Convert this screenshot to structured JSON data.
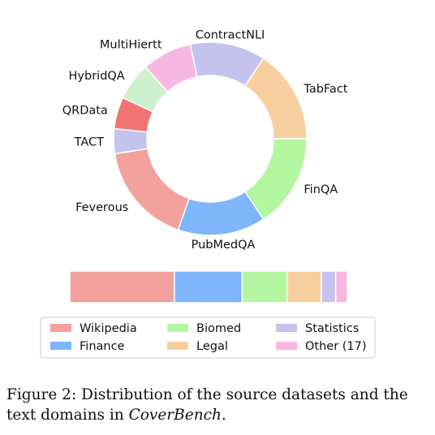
{
  "chart_data": [
    {
      "type": "pie",
      "style": "donut",
      "slices": [
        {
          "label": "TACT",
          "value": 4.2,
          "color": "#c4c3ee"
        },
        {
          "label": "QRData",
          "value": 5.3,
          "color": "#f07572"
        },
        {
          "label": "HybridQA",
          "value": 6.3,
          "color": "#cdf0cd"
        },
        {
          "label": "MultiHiertt",
          "value": 8.4,
          "color": "#f6b8e2"
        },
        {
          "label": "ContractNLI",
          "value": 12.6,
          "color": "#c4c3ee"
        },
        {
          "label": "TabFact",
          "value": 15.7,
          "color": "#f7cf9f"
        },
        {
          "label": "FinQA",
          "value": 15.7,
          "color": "#b2f6a0"
        },
        {
          "label": "PubMedQA",
          "value": 14.7,
          "color": "#7fb5fb"
        },
        {
          "label": "Feverous",
          "value": 17.1,
          "color": "#f2a19c"
        }
      ]
    },
    {
      "type": "bar",
      "orientation": "horizontal-stacked",
      "series": [
        {
          "name": "Wikipedia",
          "value": 37.7,
          "color": "#f2a19c"
        },
        {
          "name": "Finance",
          "value": 24.4,
          "color": "#7fb5fb"
        },
        {
          "name": "Biomed",
          "value": 16.3,
          "color": "#b2f6a0"
        },
        {
          "name": "Legal",
          "value": 12.2,
          "color": "#f7cf9f"
        },
        {
          "name": "Statistics",
          "value": 5.2,
          "color": "#c4c3ee"
        },
        {
          "name": "Other (17)",
          "value": 4.2,
          "color": "#f6b8e2"
        }
      ],
      "legend_position": "bottom"
    }
  ],
  "caption": {
    "prefix": "Figure 2: Distribution of the source datasets and the text domains in ",
    "emph": "CoverBench",
    "suffix": "."
  }
}
